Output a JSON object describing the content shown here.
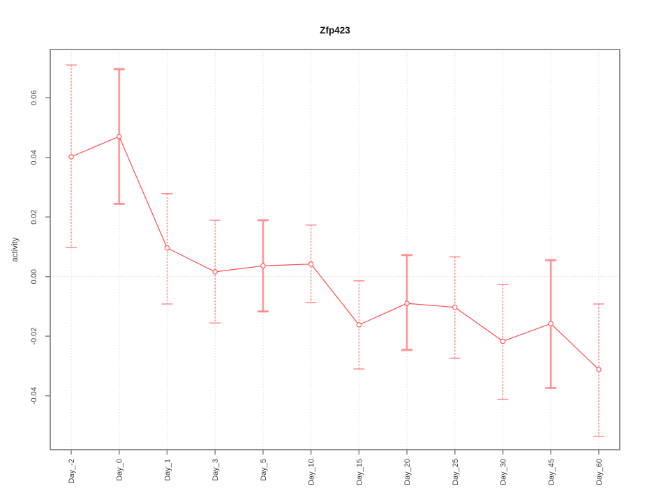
{
  "chart_data": {
    "type": "line",
    "title": "Zfp423",
    "ylabel": "activity",
    "xlabel": "",
    "legend": "none",
    "marker": "open-circle",
    "categories": [
      "Day_-2",
      "Day_0",
      "Day_1",
      "Day_3",
      "Day_5",
      "Day_10",
      "Day_15",
      "Day_20",
      "Day_25",
      "Day_30",
      "Day_45",
      "Day_60"
    ],
    "series": [
      {
        "name": "activity",
        "values": [
          0.0402,
          0.047,
          0.0096,
          0.0016,
          0.0036,
          0.0042,
          -0.0162,
          -0.009,
          -0.0103,
          -0.0217,
          -0.0158,
          -0.0312
        ],
        "error_low": [
          0.0098,
          0.0244,
          -0.0092,
          -0.0156,
          -0.0117,
          -0.0087,
          -0.031,
          -0.0246,
          -0.0274,
          -0.0412,
          -0.0374,
          -0.0536
        ],
        "error_high": [
          0.071,
          0.0696,
          0.0278,
          0.0189,
          0.0189,
          0.0173,
          -0.0014,
          0.0072,
          0.0066,
          -0.0027,
          0.0055,
          -0.0092
        ],
        "error_line_styles": [
          "dashed",
          "solid",
          "dashed",
          "dashed",
          "solid",
          "dashed",
          "dashed",
          "solid",
          "dashed",
          "dashed",
          "solid",
          "dashed"
        ]
      }
    ],
    "yticks": [
      0.06,
      0.04,
      0.02,
      0,
      -0.02,
      -0.04
    ],
    "ytick_labels": [
      "0.06",
      "0.04",
      "0.02",
      "0.00",
      "-0.02",
      "-0.04"
    ],
    "ylim": [
      -0.0581,
      0.0762
    ],
    "grid": {
      "vertical_dotted_per_category": true,
      "horizontal_dotted_zero_line": true
    },
    "colors": {
      "series_line": "#ff4d4d",
      "marker_stroke": "#ff4d4d",
      "marker_fill": "#ffffff",
      "error_bar_solid": "#ff9a9a",
      "error_bar_dashed": "#ff6b6b",
      "error_cap": "#ff8f8f",
      "grid_line": "#d9d9d9",
      "frame": "#828282",
      "tick": "#828282",
      "tick_text": "#404040",
      "title_text": "#111111"
    }
  }
}
